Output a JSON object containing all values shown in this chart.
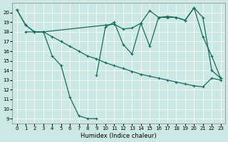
{
  "xlabel": "Humidex (Indice chaleur)",
  "background_color": "#cce8e4",
  "grid_color": "#ffffff",
  "line_color": "#1a6b5a",
  "xlim": [
    -0.5,
    23.5
  ],
  "ylim": [
    8.5,
    21.0
  ],
  "yticks": [
    9,
    10,
    11,
    12,
    13,
    14,
    15,
    16,
    17,
    18,
    19,
    20
  ],
  "xticks": [
    0,
    1,
    2,
    3,
    4,
    5,
    6,
    7,
    8,
    9,
    10,
    11,
    12,
    13,
    14,
    15,
    16,
    17,
    18,
    19,
    20,
    21,
    22,
    23
  ],
  "c1_x": [
    0,
    1,
    2,
    3,
    10,
    11,
    12,
    13,
    14,
    15,
    16,
    17,
    18,
    19,
    20,
    21,
    22,
    23
  ],
  "c1_y": [
    20.3,
    18.7,
    18.0,
    18.0,
    18.7,
    18.8,
    18.3,
    18.4,
    18.9,
    20.2,
    19.5,
    19.6,
    19.5,
    19.2,
    20.5,
    17.5,
    15.5,
    13.2
  ],
  "c2_x": [
    0,
    1,
    2,
    3,
    4,
    5,
    6,
    7,
    8,
    9
  ],
  "c2_y": [
    20.3,
    18.7,
    18.0,
    18.0,
    15.5,
    14.5,
    11.2,
    9.3,
    9.0,
    9.0
  ],
  "c3_x": [
    1,
    2,
    3,
    4,
    5,
    6,
    7,
    8,
    9,
    10,
    11,
    12,
    13,
    14,
    15,
    16,
    17,
    18,
    19,
    20,
    21,
    22,
    23
  ],
  "c3_y": [
    18.0,
    18.0,
    18.0,
    17.5,
    17.0,
    16.5,
    16.0,
    15.5,
    15.2,
    14.8,
    14.5,
    14.2,
    13.9,
    13.6,
    13.4,
    13.2,
    13.0,
    12.8,
    12.6,
    12.4,
    12.3,
    13.2,
    13.0
  ],
  "c4_x": [
    9,
    10,
    11,
    12,
    13,
    14,
    15,
    16,
    17,
    18,
    19,
    20,
    21,
    22,
    23
  ],
  "c4_y": [
    13.5,
    18.5,
    19.0,
    16.7,
    15.7,
    18.9,
    16.5,
    19.5,
    19.5,
    19.5,
    19.2,
    20.5,
    19.5,
    14.0,
    13.2
  ]
}
